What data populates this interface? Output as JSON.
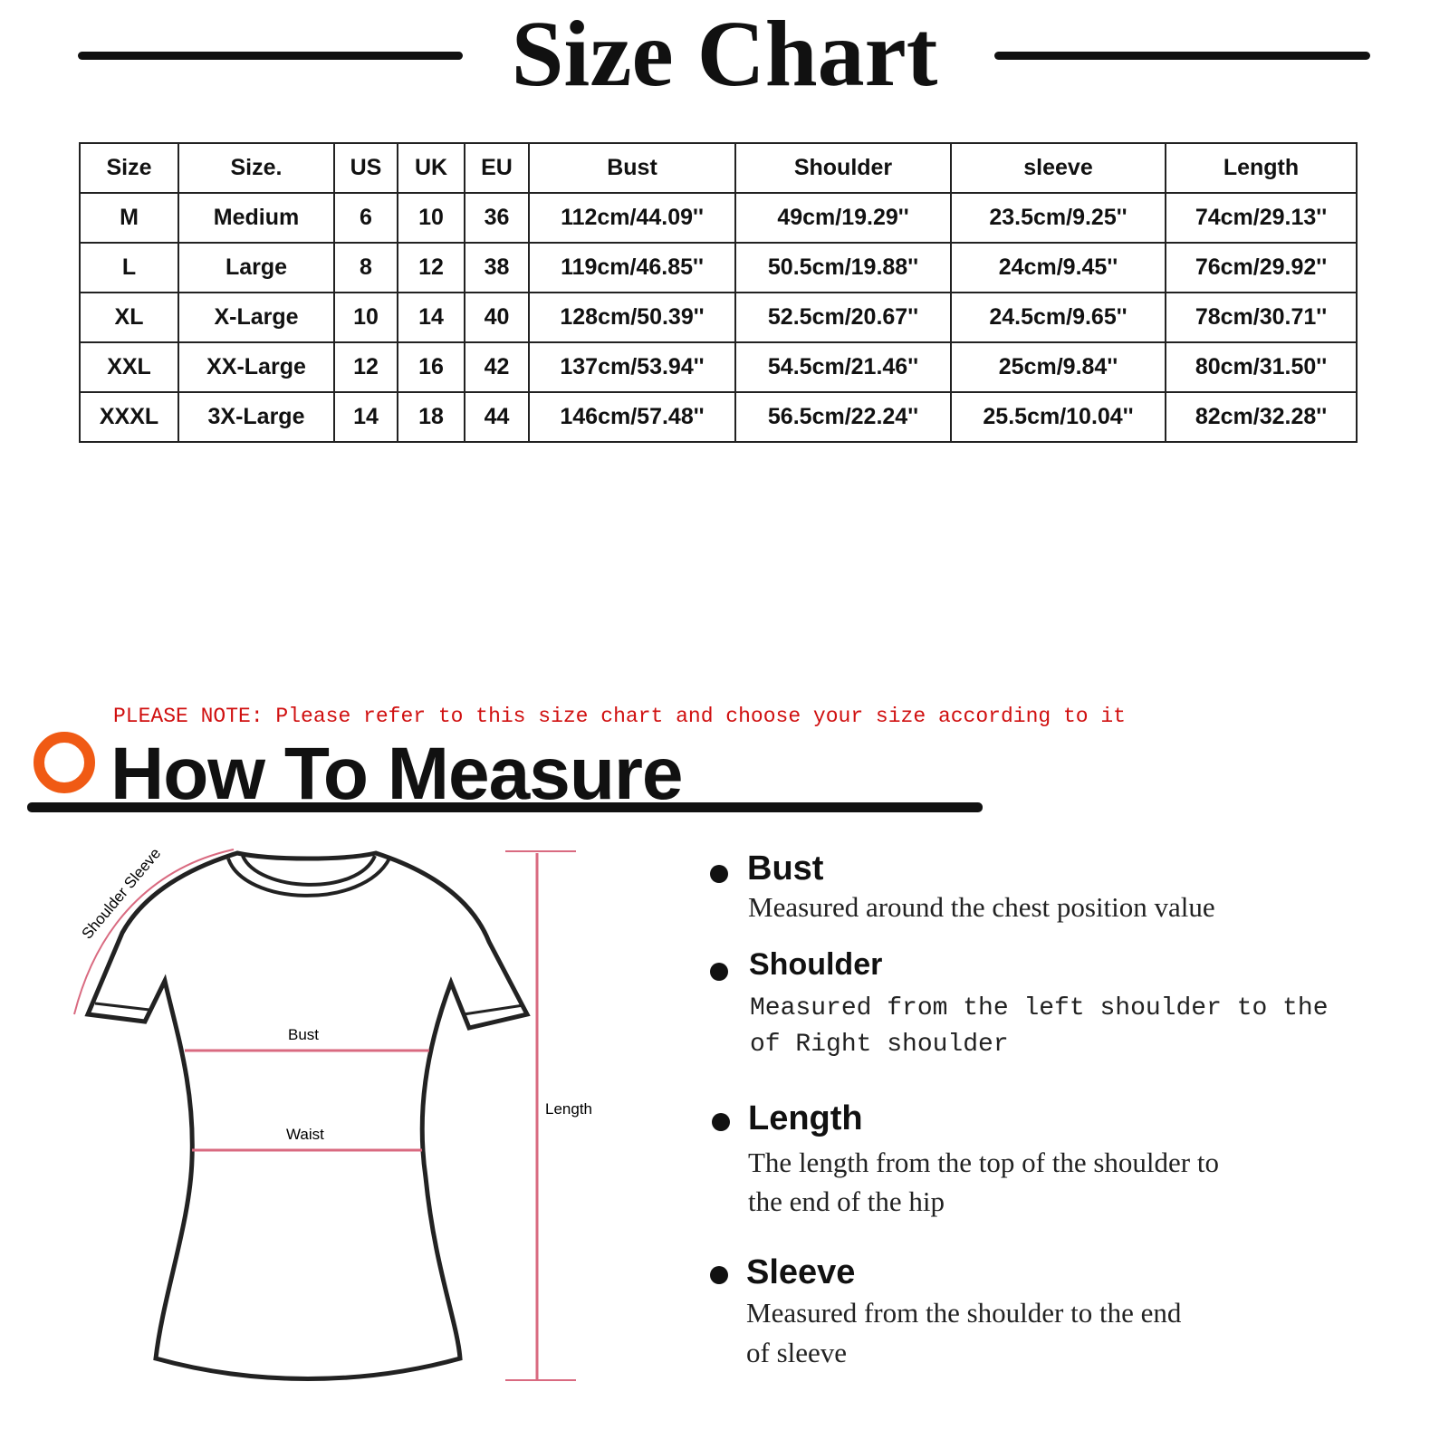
{
  "header": {
    "title": "Size Chart"
  },
  "table": {
    "columns": [
      "Size",
      "Size.",
      "US",
      "UK",
      "EU",
      "Bust",
      "Shoulder",
      "sleeve",
      "Length"
    ],
    "rows": [
      [
        "M",
        "Medium",
        "6",
        "10",
        "36",
        "112cm/44.09''",
        "49cm/19.29''",
        "23.5cm/9.25''",
        "74cm/29.13''"
      ],
      [
        "L",
        "Large",
        "8",
        "12",
        "38",
        "119cm/46.85''",
        "50.5cm/19.88''",
        "24cm/9.45''",
        "76cm/29.92''"
      ],
      [
        "XL",
        "X-Large",
        "10",
        "14",
        "40",
        "128cm/50.39''",
        "52.5cm/20.67''",
        "24.5cm/9.65''",
        "78cm/30.71''"
      ],
      [
        "XXL",
        "XX-Large",
        "12",
        "16",
        "42",
        "137cm/53.94''",
        "54.5cm/21.46''",
        "25cm/9.84''",
        "80cm/31.50''"
      ],
      [
        "XXXL",
        "3X-Large",
        "14",
        "18",
        "44",
        "146cm/57.48''",
        "56.5cm/22.24''",
        "25.5cm/10.04''",
        "82cm/32.28''"
      ]
    ]
  },
  "note": "PLEASE NOTE: Please refer to this size chart and choose your size according to it",
  "measure": {
    "title": "How To Measure",
    "accent_color": "#f05a14",
    "diagram": {
      "shoulder_sleeve": "Shoulder Sleeve",
      "bust": "Bust",
      "waist": "Waist",
      "length": "Length"
    },
    "items": [
      {
        "name": "Bust",
        "desc": "Measured around the chest position value"
      },
      {
        "name": "Shoulder",
        "desc_line1": "Measured from the left shoulder to the",
        "desc_line2": "of Right shoulder"
      },
      {
        "name": "Length",
        "desc_line1": "The length from the top of the shoulder to",
        "desc_line2": "the end of the hip"
      },
      {
        "name": "Sleeve",
        "desc_line1": "Measured from the shoulder to the end",
        "desc_line2": "of sleeve"
      }
    ]
  }
}
